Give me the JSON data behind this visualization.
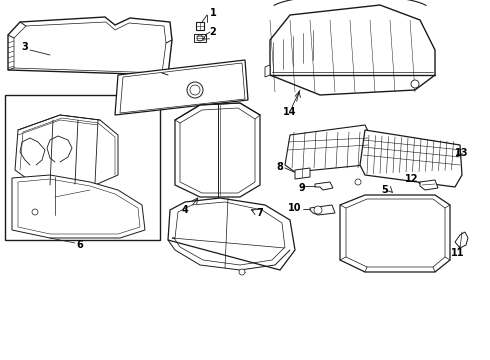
{
  "background_color": "#ffffff",
  "line_color": "#1a1a1a",
  "lw": 0.8,
  "fig_width": 4.9,
  "fig_height": 3.6,
  "dpi": 100
}
